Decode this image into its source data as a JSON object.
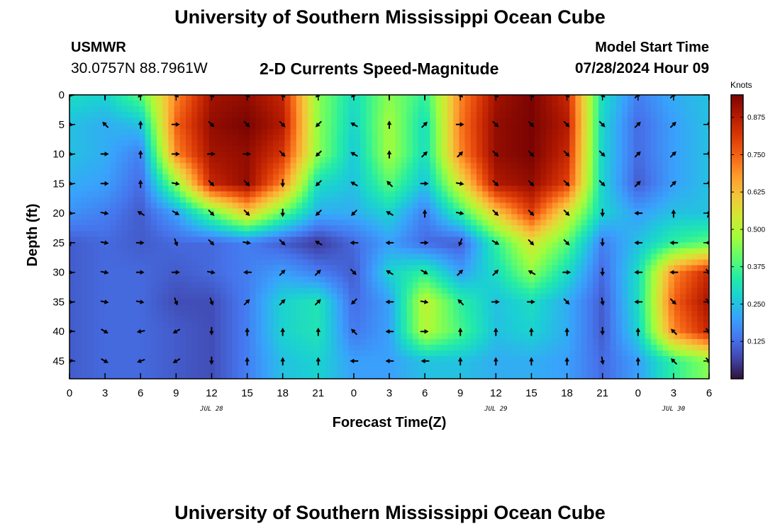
{
  "header": {
    "title": "University of Southern Mississippi Ocean Cube",
    "station": "USMWR",
    "coords": "30.0757N  88.7961W",
    "plot_title": "2-D Currents Speed-Magnitude",
    "start_label": "Model Start Time",
    "start_value": "07/28/2024 Hour 09"
  },
  "footer": {
    "title": "University of Southern Mississippi Ocean Cube"
  },
  "chart_data": {
    "type": "heatmap",
    "title": "2-D Currents Speed-Magnitude",
    "xlabel": "Forecast Time(Z)",
    "ylabel": "Depth (ft)",
    "x_tick_labels": [
      "0",
      "3",
      "6",
      "9",
      "12",
      "15",
      "18",
      "21",
      "0",
      "3",
      "6",
      "9",
      "12",
      "15",
      "18",
      "21",
      "0",
      "3",
      "6"
    ],
    "x_range_hours": [
      0,
      54
    ],
    "date_labels": [
      {
        "text": "JUL 28",
        "hour": 12
      },
      {
        "text": "JUL 29",
        "hour": 36
      },
      {
        "text": "JUL 30",
        "hour": 51
      }
    ],
    "y_ticks": [
      0,
      5,
      10,
      15,
      20,
      25,
      30,
      35,
      40,
      45
    ],
    "ylim": [
      0,
      48
    ],
    "y_inverted": true,
    "colorbar": {
      "units": "Knots",
      "ticks": [
        "0.125",
        "0.250",
        "0.375",
        "0.500",
        "0.625",
        "0.750",
        "0.875"
      ],
      "range": [
        0,
        0.95
      ],
      "colors": [
        "#30123b",
        "#4145ab",
        "#4675ed",
        "#39a2fc",
        "#1bcfd4",
        "#24eca6",
        "#61fc6c",
        "#a4fc3b",
        "#d1e834",
        "#f3c63a",
        "#fe9b2d",
        "#f36315",
        "#d93806",
        "#b11901",
        "#7a0402"
      ]
    },
    "speed_grid": {
      "hours": [
        0,
        3,
        6,
        9,
        12,
        15,
        18,
        21,
        24,
        27,
        30,
        33,
        36,
        39,
        42,
        45,
        48,
        51,
        54
      ],
      "depths": [
        0,
        5,
        10,
        15,
        20,
        25,
        30,
        35,
        40,
        45
      ],
      "values": [
        [
          0.3,
          0.28,
          0.4,
          0.7,
          0.9,
          0.92,
          0.85,
          0.45,
          0.3,
          0.45,
          0.35,
          0.7,
          0.9,
          0.95,
          0.85,
          0.3,
          0.15,
          0.22,
          0.25
        ],
        [
          0.25,
          0.22,
          0.25,
          0.75,
          0.92,
          0.95,
          0.88,
          0.45,
          0.28,
          0.48,
          0.3,
          0.72,
          0.92,
          0.95,
          0.88,
          0.28,
          0.12,
          0.2,
          0.25
        ],
        [
          0.25,
          0.22,
          0.15,
          0.7,
          0.9,
          0.92,
          0.82,
          0.45,
          0.26,
          0.48,
          0.3,
          0.7,
          0.92,
          0.95,
          0.85,
          0.28,
          0.12,
          0.2,
          0.25
        ],
        [
          0.22,
          0.2,
          0.12,
          0.45,
          0.85,
          0.92,
          0.7,
          0.3,
          0.25,
          0.4,
          0.25,
          0.55,
          0.88,
          0.92,
          0.8,
          0.28,
          0.1,
          0.2,
          0.25
        ],
        [
          0.18,
          0.15,
          0.1,
          0.2,
          0.4,
          0.6,
          0.4,
          0.22,
          0.22,
          0.28,
          0.15,
          0.35,
          0.6,
          0.8,
          0.55,
          0.28,
          0.2,
          0.25,
          0.25
        ],
        [
          0.1,
          0.12,
          0.1,
          0.12,
          0.12,
          0.15,
          0.1,
          0.05,
          0.12,
          0.2,
          0.12,
          0.1,
          0.35,
          0.55,
          0.4,
          0.15,
          0.25,
          0.35,
          0.4
        ],
        [
          0.1,
          0.12,
          0.12,
          0.1,
          0.12,
          0.15,
          0.2,
          0.15,
          0.1,
          0.28,
          0.35,
          0.2,
          0.3,
          0.45,
          0.3,
          0.12,
          0.3,
          0.7,
          0.85
        ],
        [
          0.1,
          0.12,
          0.12,
          0.08,
          0.08,
          0.15,
          0.28,
          0.32,
          0.12,
          0.2,
          0.52,
          0.35,
          0.25,
          0.3,
          0.22,
          0.1,
          0.3,
          0.75,
          0.9
        ],
        [
          0.1,
          0.12,
          0.12,
          0.1,
          0.08,
          0.15,
          0.28,
          0.32,
          0.14,
          0.2,
          0.5,
          0.38,
          0.25,
          0.28,
          0.22,
          0.1,
          0.28,
          0.7,
          0.85
        ],
        [
          0.1,
          0.12,
          0.12,
          0.1,
          0.08,
          0.15,
          0.25,
          0.28,
          0.2,
          0.2,
          0.25,
          0.25,
          0.22,
          0.22,
          0.2,
          0.12,
          0.2,
          0.35,
          0.45
        ]
      ]
    },
    "vector_angles_deg": [
      [
        100,
        0,
        225,
        135,
        135,
        135,
        135,
        225,
        225,
        0,
        0,
        135,
        135,
        135,
        135,
        135,
        45,
        45,
        0
      ],
      [
        100,
        315,
        0,
        90,
        135,
        135,
        135,
        225,
        300,
        0,
        45,
        90,
        135,
        135,
        135,
        135,
        45,
        45,
        0
      ],
      [
        100,
        90,
        0,
        90,
        90,
        90,
        135,
        225,
        300,
        0,
        45,
        45,
        135,
        135,
        135,
        135,
        45,
        45,
        0
      ],
      [
        100,
        90,
        0,
        100,
        135,
        135,
        180,
        225,
        300,
        315,
        90,
        100,
        135,
        135,
        135,
        135,
        45,
        45,
        0
      ],
      [
        100,
        100,
        300,
        120,
        135,
        135,
        180,
        225,
        225,
        300,
        0,
        100,
        135,
        135,
        135,
        180,
        270,
        0,
        20
      ],
      [
        160,
        100,
        90,
        160,
        135,
        100,
        135,
        300,
        270,
        270,
        90,
        200,
        120,
        135,
        135,
        180,
        270,
        270,
        270
      ],
      [
        100,
        100,
        90,
        90,
        100,
        270,
        45,
        45,
        135,
        300,
        120,
        45,
        45,
        300,
        90,
        180,
        270,
        270,
        135
      ],
      [
        100,
        100,
        100,
        160,
        160,
        45,
        45,
        45,
        225,
        270,
        100,
        315,
        90,
        90,
        135,
        170,
        270,
        135,
        135
      ],
      [
        80,
        120,
        260,
        240,
        180,
        0,
        0,
        0,
        315,
        270,
        90,
        0,
        0,
        0,
        0,
        180,
        0,
        315,
        135
      ],
      [
        70,
        120,
        250,
        240,
        180,
        0,
        0,
        0,
        270,
        270,
        270,
        0,
        0,
        0,
        0,
        170,
        0,
        315,
        135
      ]
    ]
  }
}
